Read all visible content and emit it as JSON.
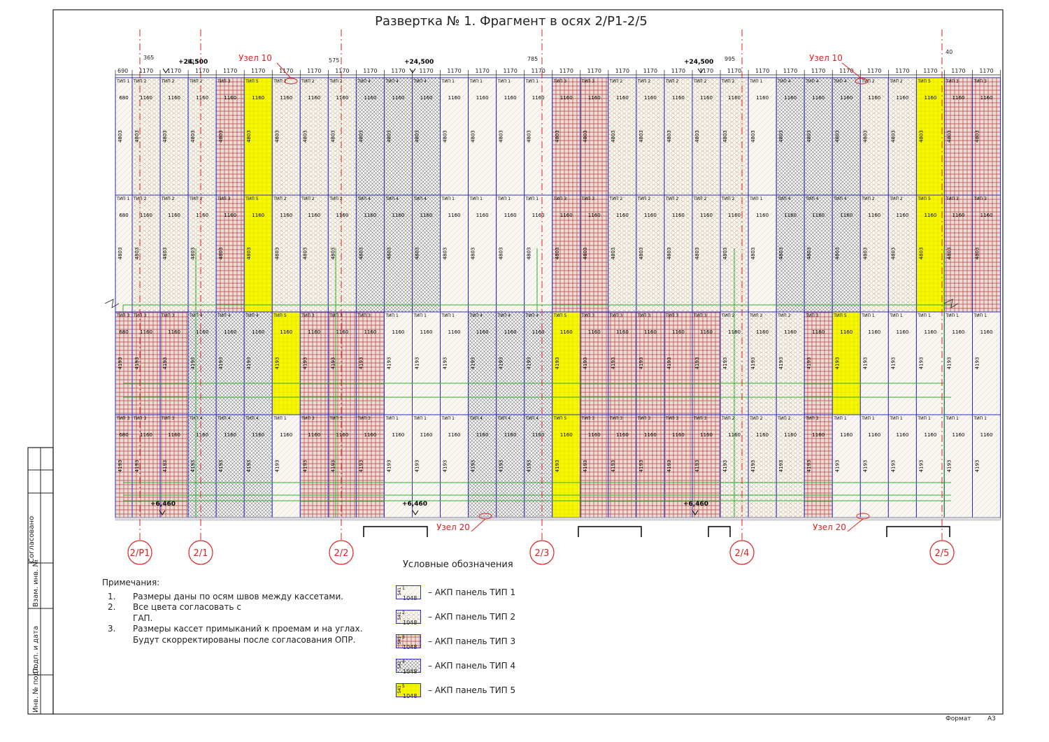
{
  "title": "Развертка № 1. Фрагмент в осях 2/Р1-2/5",
  "axes": [
    "2/Р1",
    "2/1",
    "2/2",
    "2/3",
    "2/4",
    "2/5"
  ],
  "nodes": {
    "top_left": "Узел 10",
    "top_right": "Узел 10",
    "bottom_left": "Узел 20",
    "bottom_right": "Узел 20"
  },
  "elevations": {
    "top": "+24,500",
    "bottom": "+6,460"
  },
  "top_dims": {
    "first": "690",
    "offset_1": "365",
    "offset_2": "525",
    "offset_3": "575",
    "offset_4": "785",
    "offset_5": "995",
    "offset_6": "40",
    "module": "1170"
  },
  "panel_labels": {
    "width_std": "1160",
    "width_edge": "680",
    "height_upper": "4803",
    "height_lower": "4193"
  },
  "type_prefix": "ТИП",
  "panel_rows": {
    "row1": [
      1,
      2,
      2,
      2,
      3,
      5,
      2,
      2,
      2,
      4,
      4,
      4,
      1,
      1,
      1,
      1,
      3,
      3,
      2,
      2,
      2,
      2,
      2,
      1,
      4,
      4,
      4,
      2,
      2,
      5,
      3,
      3
    ],
    "row2": [
      1,
      2,
      2,
      2,
      3,
      5,
      2,
      2,
      2,
      4,
      4,
      4,
      1,
      1,
      1,
      1,
      3,
      3,
      2,
      2,
      2,
      2,
      2,
      1,
      4,
      4,
      4,
      2,
      2,
      5,
      3,
      3
    ],
    "row3": [
      3,
      3,
      3,
      4,
      4,
      4,
      5,
      3,
      3,
      3,
      1,
      1,
      1,
      4,
      4,
      4,
      5,
      3,
      3,
      3,
      3,
      3,
      2,
      2,
      2,
      3,
      5,
      1,
      1,
      1,
      1,
      1
    ],
    "row4": [
      3,
      3,
      3,
      4,
      4,
      4,
      1,
      3,
      3,
      3,
      1,
      1,
      1,
      4,
      4,
      4,
      5,
      3,
      3,
      3,
      3,
      3,
      2,
      2,
      2,
      3,
      1,
      1,
      1,
      1,
      1,
      1
    ]
  },
  "colors": {
    "grid_blue": "#2c2cc0",
    "axis_red": "#dd2222",
    "yellow": "#f7f700",
    "type3_red": "#b84040",
    "green": "#2fae2f",
    "ink": "#222222"
  },
  "notes": {
    "header": "Примечания:",
    "items": [
      {
        "num": "1.",
        "text": "Размеры даны по осям швов между кассетами."
      },
      {
        "num": "2.",
        "text": "Все цвета согласовать с\nГАП."
      },
      {
        "num": "3.",
        "text": "Размеры кассет примыканий к проемам и на углах.\nБудут скорректированы после согласования ОПР."
      }
    ]
  },
  "legend": {
    "title": "Условные обозначения",
    "sample_code": "541",
    "sample_width": "1048",
    "items": [
      {
        "type": 1,
        "label": "– АКП панель ТИП 1"
      },
      {
        "type": 2,
        "label": "– АКП панель ТИП 2"
      },
      {
        "type": 3,
        "label": "– АКП панель ТИП 3"
      },
      {
        "type": 4,
        "label": "– АКП панель ТИП 4"
      },
      {
        "type": 5,
        "label": "– АКП панель ТИП 5"
      }
    ]
  },
  "stamp": {
    "agreed": "Согласовано",
    "inv_no": "Взам. инв. №",
    "sign_date": "Подп. и дата",
    "inv_orig": "Инв. № подл."
  },
  "footer": {
    "format_label": "Формат",
    "format_value": "А3"
  }
}
